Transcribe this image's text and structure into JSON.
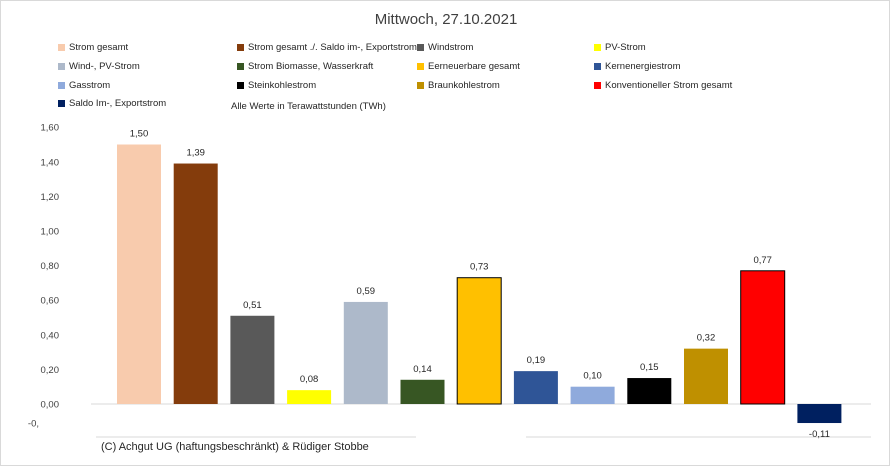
{
  "chart_data": {
    "type": "bar",
    "title": "Mittwoch, 27.10.2021",
    "subtitle": "Alle Werte in Terawattstunden (TWh)",
    "footer": "(C) Achgut UG (haftungsbeschränkt) & Rüdiger Stobbe",
    "xlabel": "",
    "ylabel": "",
    "ylim": [
      -0.11,
      1.6
    ],
    "yticks": [
      {
        "value": 1.6,
        "label": "1,60"
      },
      {
        "value": 1.4,
        "label": "1,40"
      },
      {
        "value": 1.2,
        "label": "1,20"
      },
      {
        "value": 1.0,
        "label": "1,00"
      },
      {
        "value": 0.8,
        "label": "0,80"
      },
      {
        "value": 0.6,
        "label": "0,60"
      },
      {
        "value": 0.4,
        "label": "0,40"
      },
      {
        "value": 0.2,
        "label": "0,20"
      },
      {
        "value": 0.0,
        "label": "0,00"
      },
      {
        "value": -0.11,
        "label": "-0,"
      }
    ],
    "grid": true,
    "legend_position": "top",
    "categories": [
      "Strom gesamt",
      "Strom gesamt ./. Saldo im-, Exportstrom",
      "Windstrom",
      "PV-Strom",
      "Wind-, PV-Strom",
      "Strom Biomasse, Wasserkraft",
      "Eerneuerbare gesamt",
      "Kernenergiestrom",
      "Gasstrom",
      "Steinkohlestrom",
      "Braunkohlestrom",
      "Konventioneller Strom gesamt",
      "Saldo Im-, Exportstrom"
    ],
    "values": [
      1.5,
      1.39,
      0.51,
      0.08,
      0.59,
      0.14,
      0.73,
      0.19,
      0.1,
      0.15,
      0.32,
      0.77,
      -0.11
    ],
    "value_labels": [
      "1,50",
      "1,39",
      "0,51",
      "0,08",
      "0,59",
      "0,14",
      "0,73",
      "0,19",
      "0,10",
      "0,15",
      "0,32",
      "0,77",
      "-0,11"
    ],
    "colors": [
      "#f8cbad",
      "#843c0c",
      "#595959",
      "#ffff00",
      "#adb9ca",
      "#375623",
      "#ffc000",
      "#2f5597",
      "#8faadc",
      "#000000",
      "#bf9000",
      "#ff0000",
      "#002060"
    ],
    "outlined": [
      false,
      false,
      false,
      false,
      false,
      false,
      true,
      false,
      false,
      false,
      false,
      true,
      false
    ]
  }
}
